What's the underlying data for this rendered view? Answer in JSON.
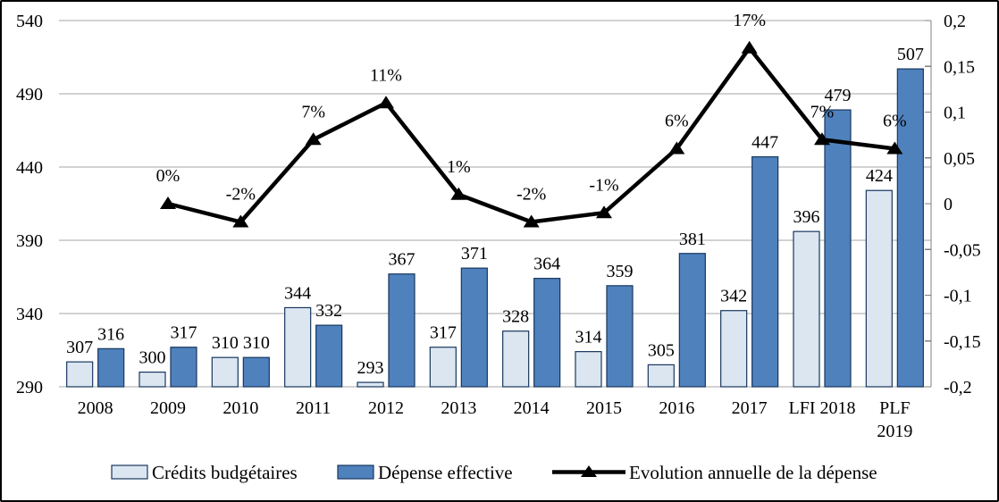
{
  "chart_data": {
    "type": "bar",
    "subtype": "bar-line-combo",
    "title": "",
    "categories": [
      "2008",
      "2009",
      "2010",
      "2011",
      "2012",
      "2013",
      "2014",
      "2015",
      "2016",
      "2017",
      "LFI 2018",
      "PLF 2019"
    ],
    "category_label_lines": [
      [
        "2008"
      ],
      [
        "2009"
      ],
      [
        "2010"
      ],
      [
        "2011"
      ],
      [
        "2012"
      ],
      [
        "2013"
      ],
      [
        "2014"
      ],
      [
        "2015"
      ],
      [
        "2016"
      ],
      [
        "2017"
      ],
      [
        "LFI 2018"
      ],
      [
        "PLF",
        "2019"
      ]
    ],
    "series": [
      {
        "name": "Crédits budgétaires",
        "type": "bar",
        "axis": "left",
        "values": [
          307,
          300,
          310,
          344,
          293,
          317,
          328,
          314,
          305,
          342,
          396,
          424
        ],
        "labels": [
          "307",
          "300",
          "310",
          "344",
          "293",
          "317",
          "328",
          "314",
          "305",
          "342",
          "396",
          "424"
        ],
        "fill": "#dce6f1",
        "border": "#17375d"
      },
      {
        "name": "Dépense effective",
        "type": "bar",
        "axis": "left",
        "values": [
          316,
          317,
          310,
          332,
          367,
          371,
          364,
          359,
          381,
          447,
          479,
          507
        ],
        "labels": [
          "316",
          "317",
          "310",
          "332",
          "367",
          "371",
          "364",
          "359",
          "381",
          "447",
          "479",
          "507"
        ],
        "fill": "#4f81bd",
        "border": "#17375d"
      },
      {
        "name": "Evolution annuelle de la dépense",
        "type": "line",
        "axis": "right",
        "values": [
          null,
          0.0,
          -0.02,
          0.07,
          0.11,
          0.01,
          -0.02,
          -0.01,
          0.06,
          0.17,
          0.07,
          0.06
        ],
        "labels": [
          "",
          "0%",
          "-2%",
          "7%",
          "11%",
          "1%",
          "-2%",
          "-1%",
          "6%",
          "17%",
          "7%",
          "6%"
        ],
        "color": "#000000",
        "marker": "triangle"
      }
    ],
    "left_axis": {
      "min": 290,
      "max": 540,
      "step": 50,
      "ticks": [
        "540",
        "490",
        "440",
        "390",
        "340",
        "290"
      ]
    },
    "right_axis": {
      "min": -0.2,
      "max": 0.2,
      "step": 0.05,
      "ticks": [
        "0,2",
        "0,15",
        "0,1",
        "0,05",
        "0",
        "-0,05",
        "-0,1",
        "-0,15",
        "-0,2"
      ]
    },
    "grid": true,
    "legend_position": "bottom",
    "colors": {
      "gridline": "#a6a6a6",
      "axis": "#808080",
      "text": "#000000",
      "background": "#ffffff",
      "frame_border": "#000000"
    }
  }
}
